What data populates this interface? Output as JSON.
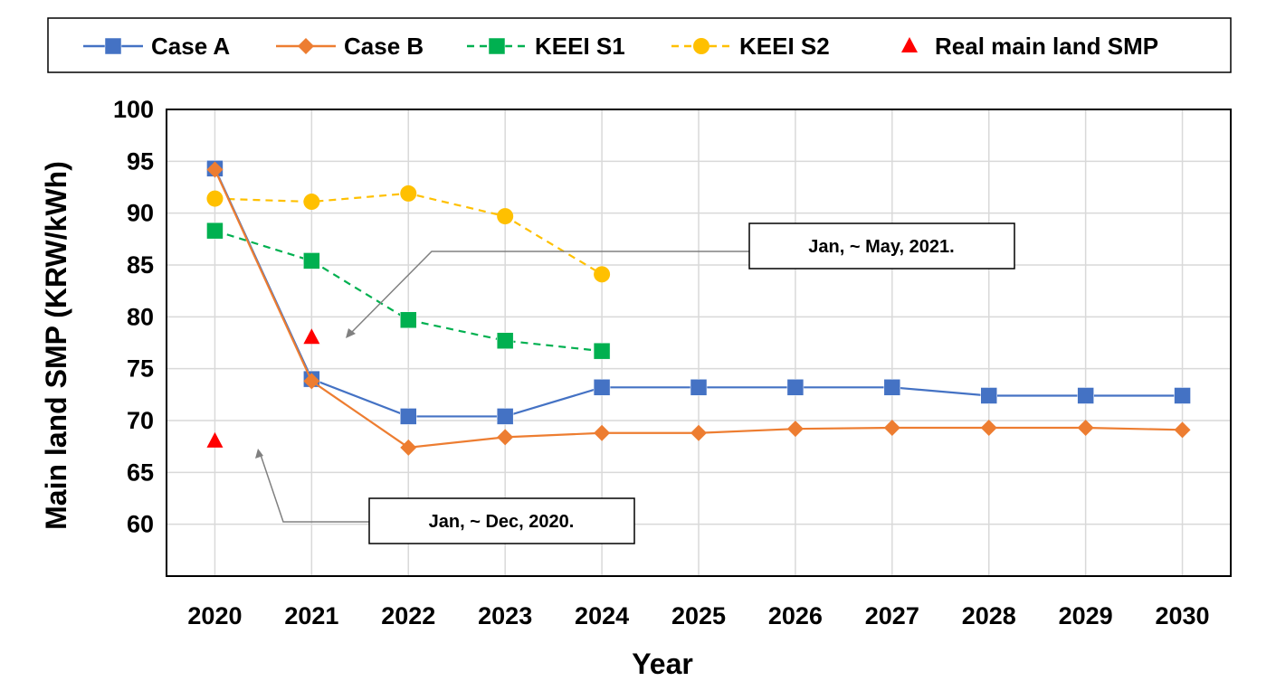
{
  "chart_data": {
    "type": "line",
    "title": "",
    "xlabel": "Year",
    "ylabel": "Main land SMP (KRW/kWh)",
    "categories": [
      "2020",
      "2021",
      "2022",
      "2023",
      "2024",
      "2025",
      "2026",
      "2027",
      "2028",
      "2029",
      "2030"
    ],
    "ylim": [
      55,
      100
    ],
    "yticks": [
      60,
      65,
      70,
      75,
      80,
      85,
      90,
      95,
      100
    ],
    "grid": true,
    "legend_position": "top",
    "series": [
      {
        "name": "Case A",
        "color": "#4472C4",
        "marker": "square",
        "dash": "solid",
        "values": [
          94.3,
          74.0,
          70.4,
          70.4,
          73.2,
          73.2,
          73.2,
          73.2,
          72.4,
          72.4,
          72.4
        ]
      },
      {
        "name": "Case B",
        "color": "#ED7D31",
        "marker": "diamond",
        "dash": "solid",
        "values": [
          94.2,
          73.8,
          67.4,
          68.4,
          68.8,
          68.8,
          69.2,
          69.3,
          69.3,
          69.3,
          69.1
        ]
      },
      {
        "name": "KEEI S1",
        "color": "#00B050",
        "marker": "square",
        "dash": "dashed",
        "values": [
          88.3,
          85.4,
          79.7,
          77.7,
          76.7,
          null,
          null,
          null,
          null,
          null,
          null
        ]
      },
      {
        "name": "KEEI S2",
        "color": "#FFC000",
        "marker": "circle",
        "dash": "dashed",
        "values": [
          91.4,
          91.1,
          91.9,
          89.7,
          84.1,
          null,
          null,
          null,
          null,
          null,
          null
        ]
      },
      {
        "name": "Real main land SMP",
        "color": "#FF0000",
        "marker": "triangle",
        "dash": "none",
        "values": [
          68.0,
          78.0,
          null,
          null,
          null,
          null,
          null,
          null,
          null,
          null,
          null
        ]
      }
    ],
    "annotations": [
      {
        "text": "Jan, ~ May, 2021.",
        "points_to": {
          "category": "2021",
          "value": 78.0
        }
      },
      {
        "text": "Jan, ~ Dec, 2020.",
        "points_to": {
          "category": "2020",
          "value": 68.0
        }
      }
    ]
  }
}
